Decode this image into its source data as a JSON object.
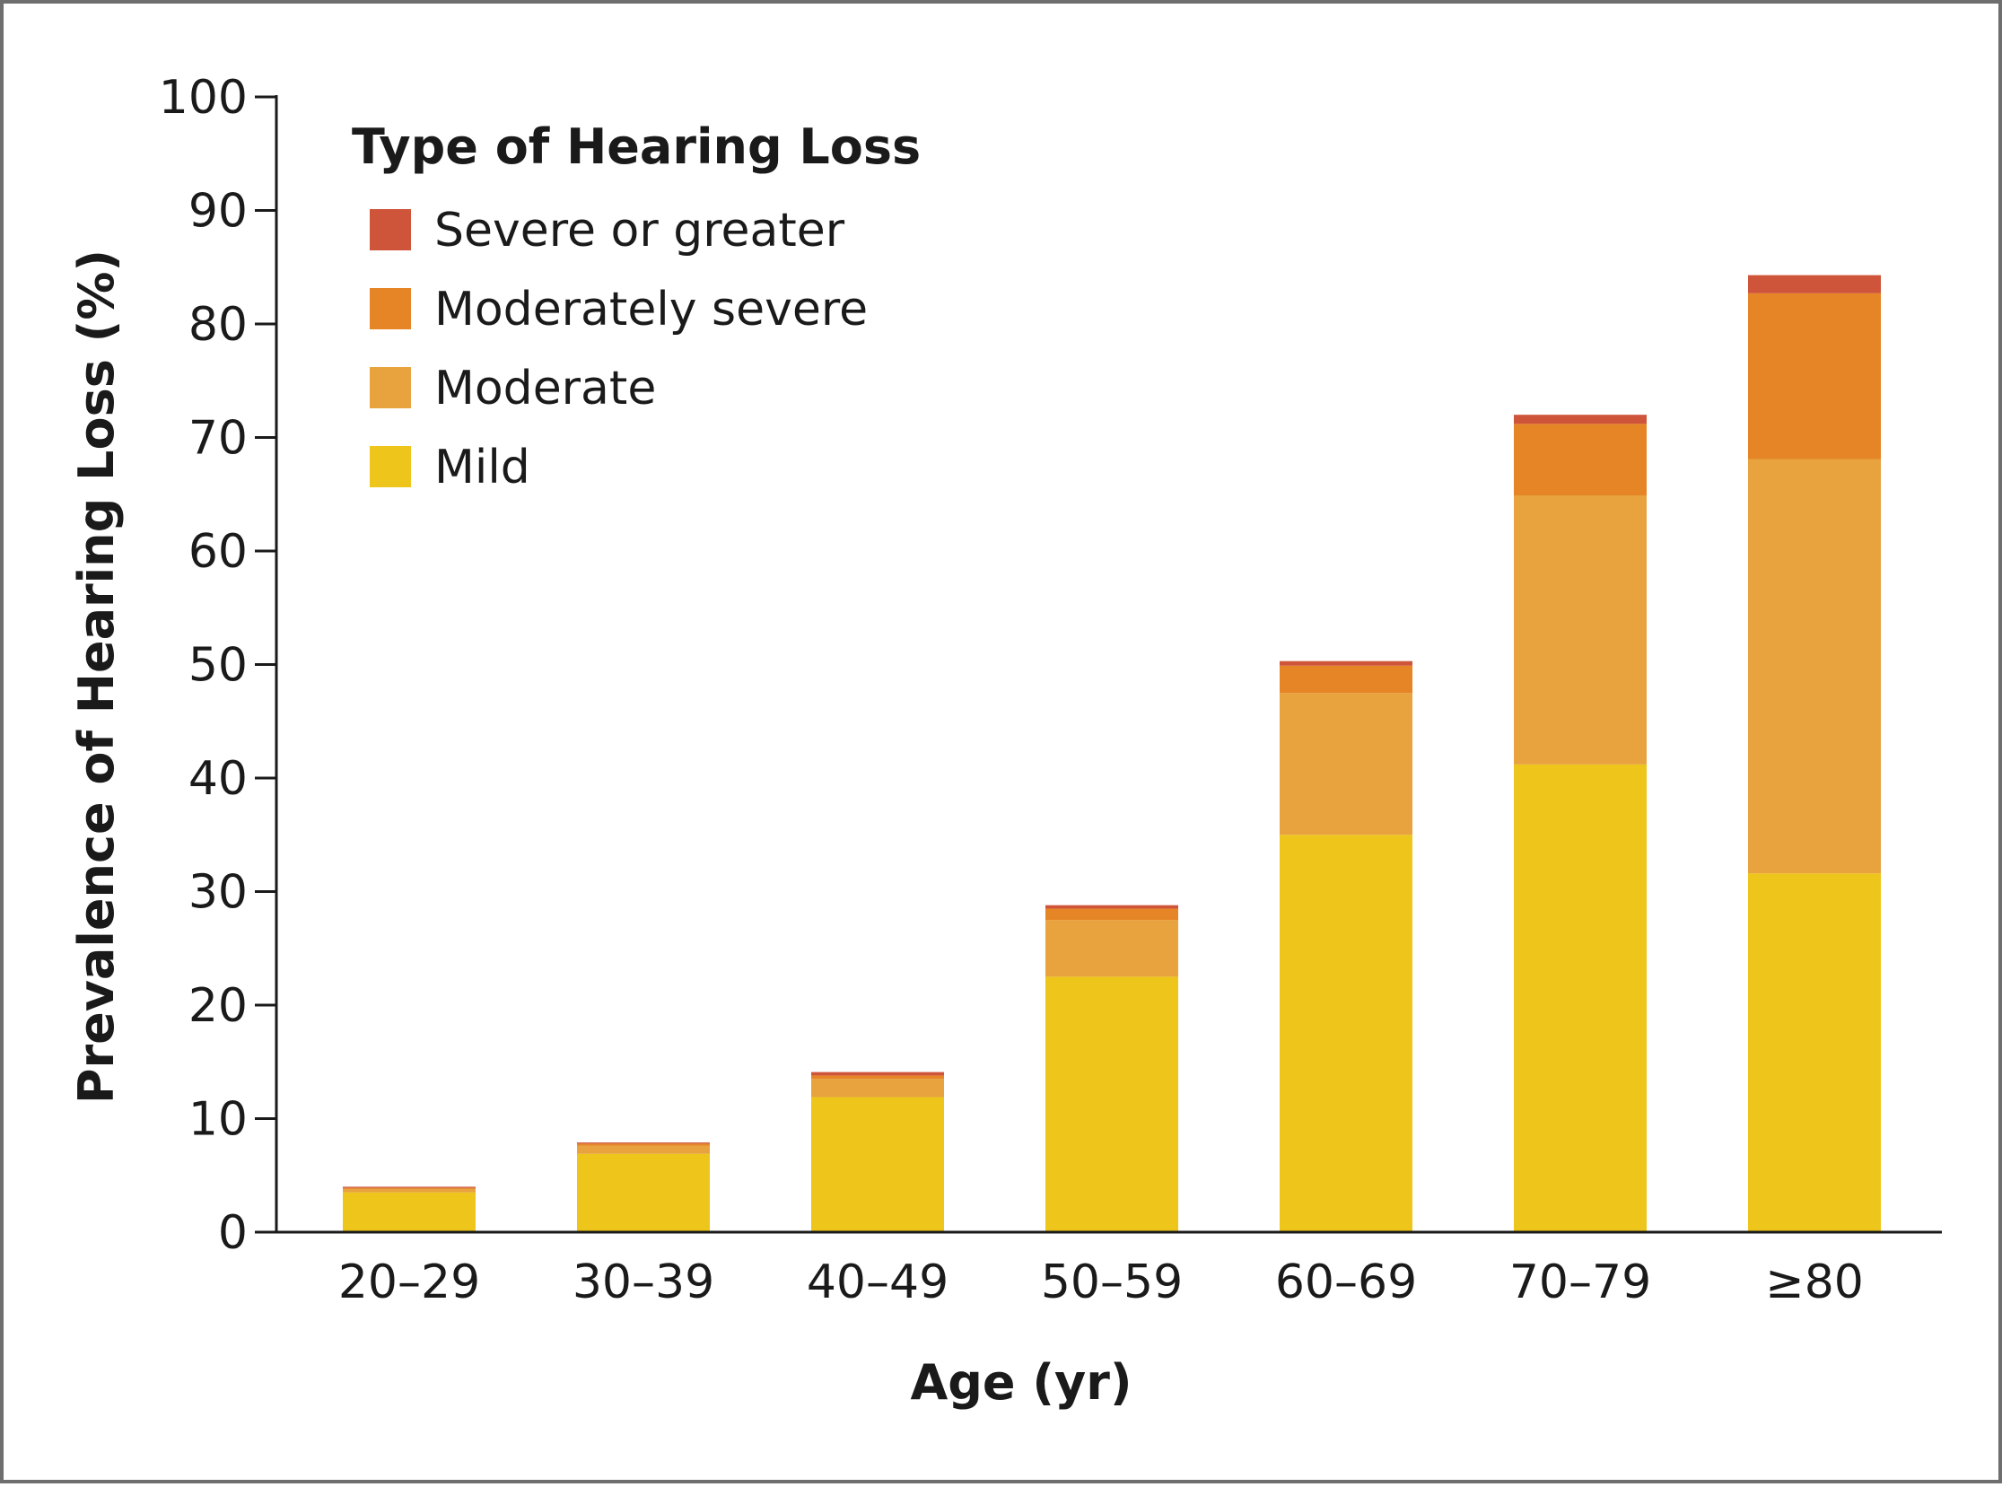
{
  "chart_data": {
    "type": "bar",
    "stacked": true,
    "title": "",
    "xlabel": "Age (yr)",
    "ylabel": "Prevalence of Hearing Loss (%)",
    "ylim": [
      0,
      100
    ],
    "yticks": [
      0,
      10,
      20,
      30,
      40,
      50,
      60,
      70,
      80,
      90,
      100
    ],
    "ytick_labels": [
      "0",
      "10",
      "20",
      "30",
      "40",
      "50",
      "60",
      "70",
      "80",
      "90",
      "100"
    ],
    "categories": [
      "20–29",
      "30–39",
      "40–49",
      "50–59",
      "60–69",
      "70–79",
      "≥80"
    ],
    "legend_title": "Type of Hearing Loss",
    "legend_position": "top-left",
    "series": [
      {
        "name": "Mild",
        "color": "#EEC51A",
        "values": [
          3.5,
          6.9,
          11.9,
          22.5,
          35.0,
          41.2,
          31.6
        ]
      },
      {
        "name": "Moderate",
        "color": "#E8A23E",
        "values": [
          0.3,
          0.7,
          1.6,
          5.0,
          12.5,
          23.7,
          36.5
        ]
      },
      {
        "name": "Moderately severe",
        "color": "#E58525",
        "values": [
          0.1,
          0.2,
          0.3,
          1.0,
          2.4,
          6.3,
          14.6
        ]
      },
      {
        "name": "Severe or greater",
        "color": "#CF553A",
        "values": [
          0.1,
          0.1,
          0.3,
          0.3,
          0.4,
          0.8,
          1.6
        ]
      }
    ],
    "legend_order": [
      "Severe or greater",
      "Moderately severe",
      "Moderate",
      "Mild"
    ],
    "grid": false
  }
}
